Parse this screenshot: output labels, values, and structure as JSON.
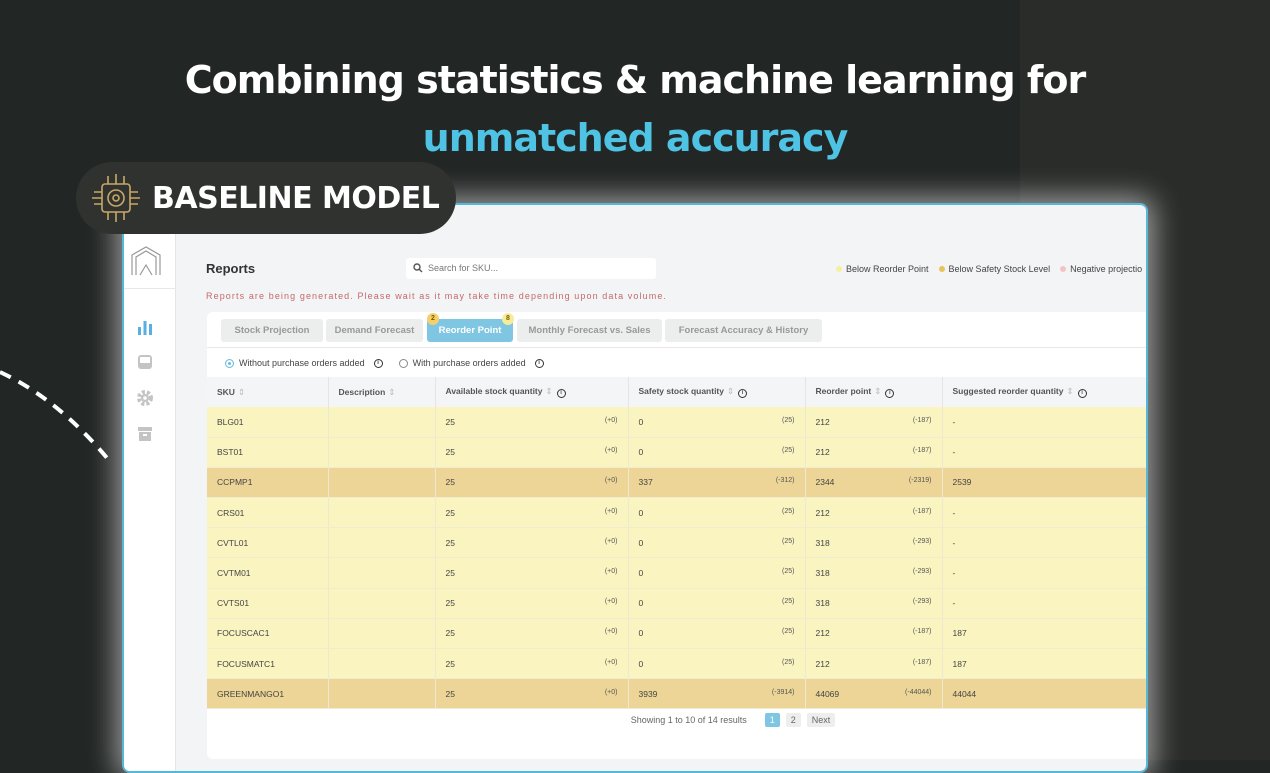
{
  "hero": {
    "line1": "Combining statistics & machine learning for",
    "line2": "unmatched accuracy"
  },
  "badge": {
    "label": "BASELINE MODEL",
    "icon": "brain-chip-icon"
  },
  "colors": {
    "accent": "#4fc3e3",
    "gold": "#c9a866",
    "row_below_reorder": "#faf4c0",
    "row_below_safety": "#ecd596"
  },
  "app": {
    "title": "Reports",
    "search_placeholder": "Search for SKU...",
    "legend": [
      {
        "label": "Below Reorder Point",
        "color": "#f7efa0"
      },
      {
        "label": "Below Safety Stock Level",
        "color": "#e8c45a"
      },
      {
        "label": "Negative projectio",
        "color": "#f2c4c4"
      }
    ],
    "warning": "Reports are being generated. Please wait as it may take time depending upon data volume.",
    "tabs": [
      {
        "label": "Stock Projection"
      },
      {
        "label": "Demand Forecast"
      },
      {
        "label": "Reorder Point",
        "badge_left": "2",
        "badge_right": "8",
        "active": true
      },
      {
        "label": "Monthly Forecast vs. Sales"
      },
      {
        "label": "Forecast Accuracy & History"
      }
    ],
    "radios": [
      {
        "label": "Without purchase orders added",
        "checked": true
      },
      {
        "label": "With purchase orders added",
        "checked": false
      }
    ],
    "columns": [
      "SKU",
      "Description",
      "Available stock quantity",
      "Safety stock quantity",
      "Reorder point",
      "Suggested reorder quantity"
    ],
    "rows": [
      {
        "sku": "BLG01",
        "desc": "",
        "avail": "25",
        "avail_d": "(+0)",
        "safety": "0",
        "safety_d": "(25)",
        "reorder": "212",
        "reorder_d": "(-187)",
        "suggested": "-",
        "level": "y"
      },
      {
        "sku": "BST01",
        "desc": "",
        "avail": "25",
        "avail_d": "(+0)",
        "safety": "0",
        "safety_d": "(25)",
        "reorder": "212",
        "reorder_d": "(-187)",
        "suggested": "-",
        "level": "y"
      },
      {
        "sku": "CCPMP1",
        "desc": "",
        "avail": "25",
        "avail_d": "(+0)",
        "safety": "337",
        "safety_d": "(-312)",
        "reorder": "2344",
        "reorder_d": "(-2319)",
        "suggested": "2539",
        "level": "o"
      },
      {
        "sku": "CRS01",
        "desc": "",
        "avail": "25",
        "avail_d": "(+0)",
        "safety": "0",
        "safety_d": "(25)",
        "reorder": "212",
        "reorder_d": "(-187)",
        "suggested": "-",
        "level": "y"
      },
      {
        "sku": "CVTL01",
        "desc": "",
        "avail": "25",
        "avail_d": "(+0)",
        "safety": "0",
        "safety_d": "(25)",
        "reorder": "318",
        "reorder_d": "(-293)",
        "suggested": "-",
        "level": "y"
      },
      {
        "sku": "CVTM01",
        "desc": "",
        "avail": "25",
        "avail_d": "(+0)",
        "safety": "0",
        "safety_d": "(25)",
        "reorder": "318",
        "reorder_d": "(-293)",
        "suggested": "-",
        "level": "y"
      },
      {
        "sku": "CVTS01",
        "desc": "",
        "avail": "25",
        "avail_d": "(+0)",
        "safety": "0",
        "safety_d": "(25)",
        "reorder": "318",
        "reorder_d": "(-293)",
        "suggested": "-",
        "level": "y"
      },
      {
        "sku": "FOCUSCAC1",
        "desc": "",
        "avail": "25",
        "avail_d": "(+0)",
        "safety": "0",
        "safety_d": "(25)",
        "reorder": "212",
        "reorder_d": "(-187)",
        "suggested": "187",
        "level": "y"
      },
      {
        "sku": "FOCUSMATC1",
        "desc": "",
        "avail": "25",
        "avail_d": "(+0)",
        "safety": "0",
        "safety_d": "(25)",
        "reorder": "212",
        "reorder_d": "(-187)",
        "suggested": "187",
        "level": "y"
      },
      {
        "sku": "GREENMANGO1",
        "desc": "",
        "avail": "25",
        "avail_d": "(+0)",
        "safety": "3939",
        "safety_d": "(-3914)",
        "reorder": "44069",
        "reorder_d": "(-44044)",
        "suggested": "44044",
        "level": "o"
      }
    ],
    "pagination": {
      "summary": "Showing 1 to 10 of 14 results",
      "pages": [
        "1",
        "2"
      ],
      "current": "1",
      "next": "Next"
    }
  }
}
